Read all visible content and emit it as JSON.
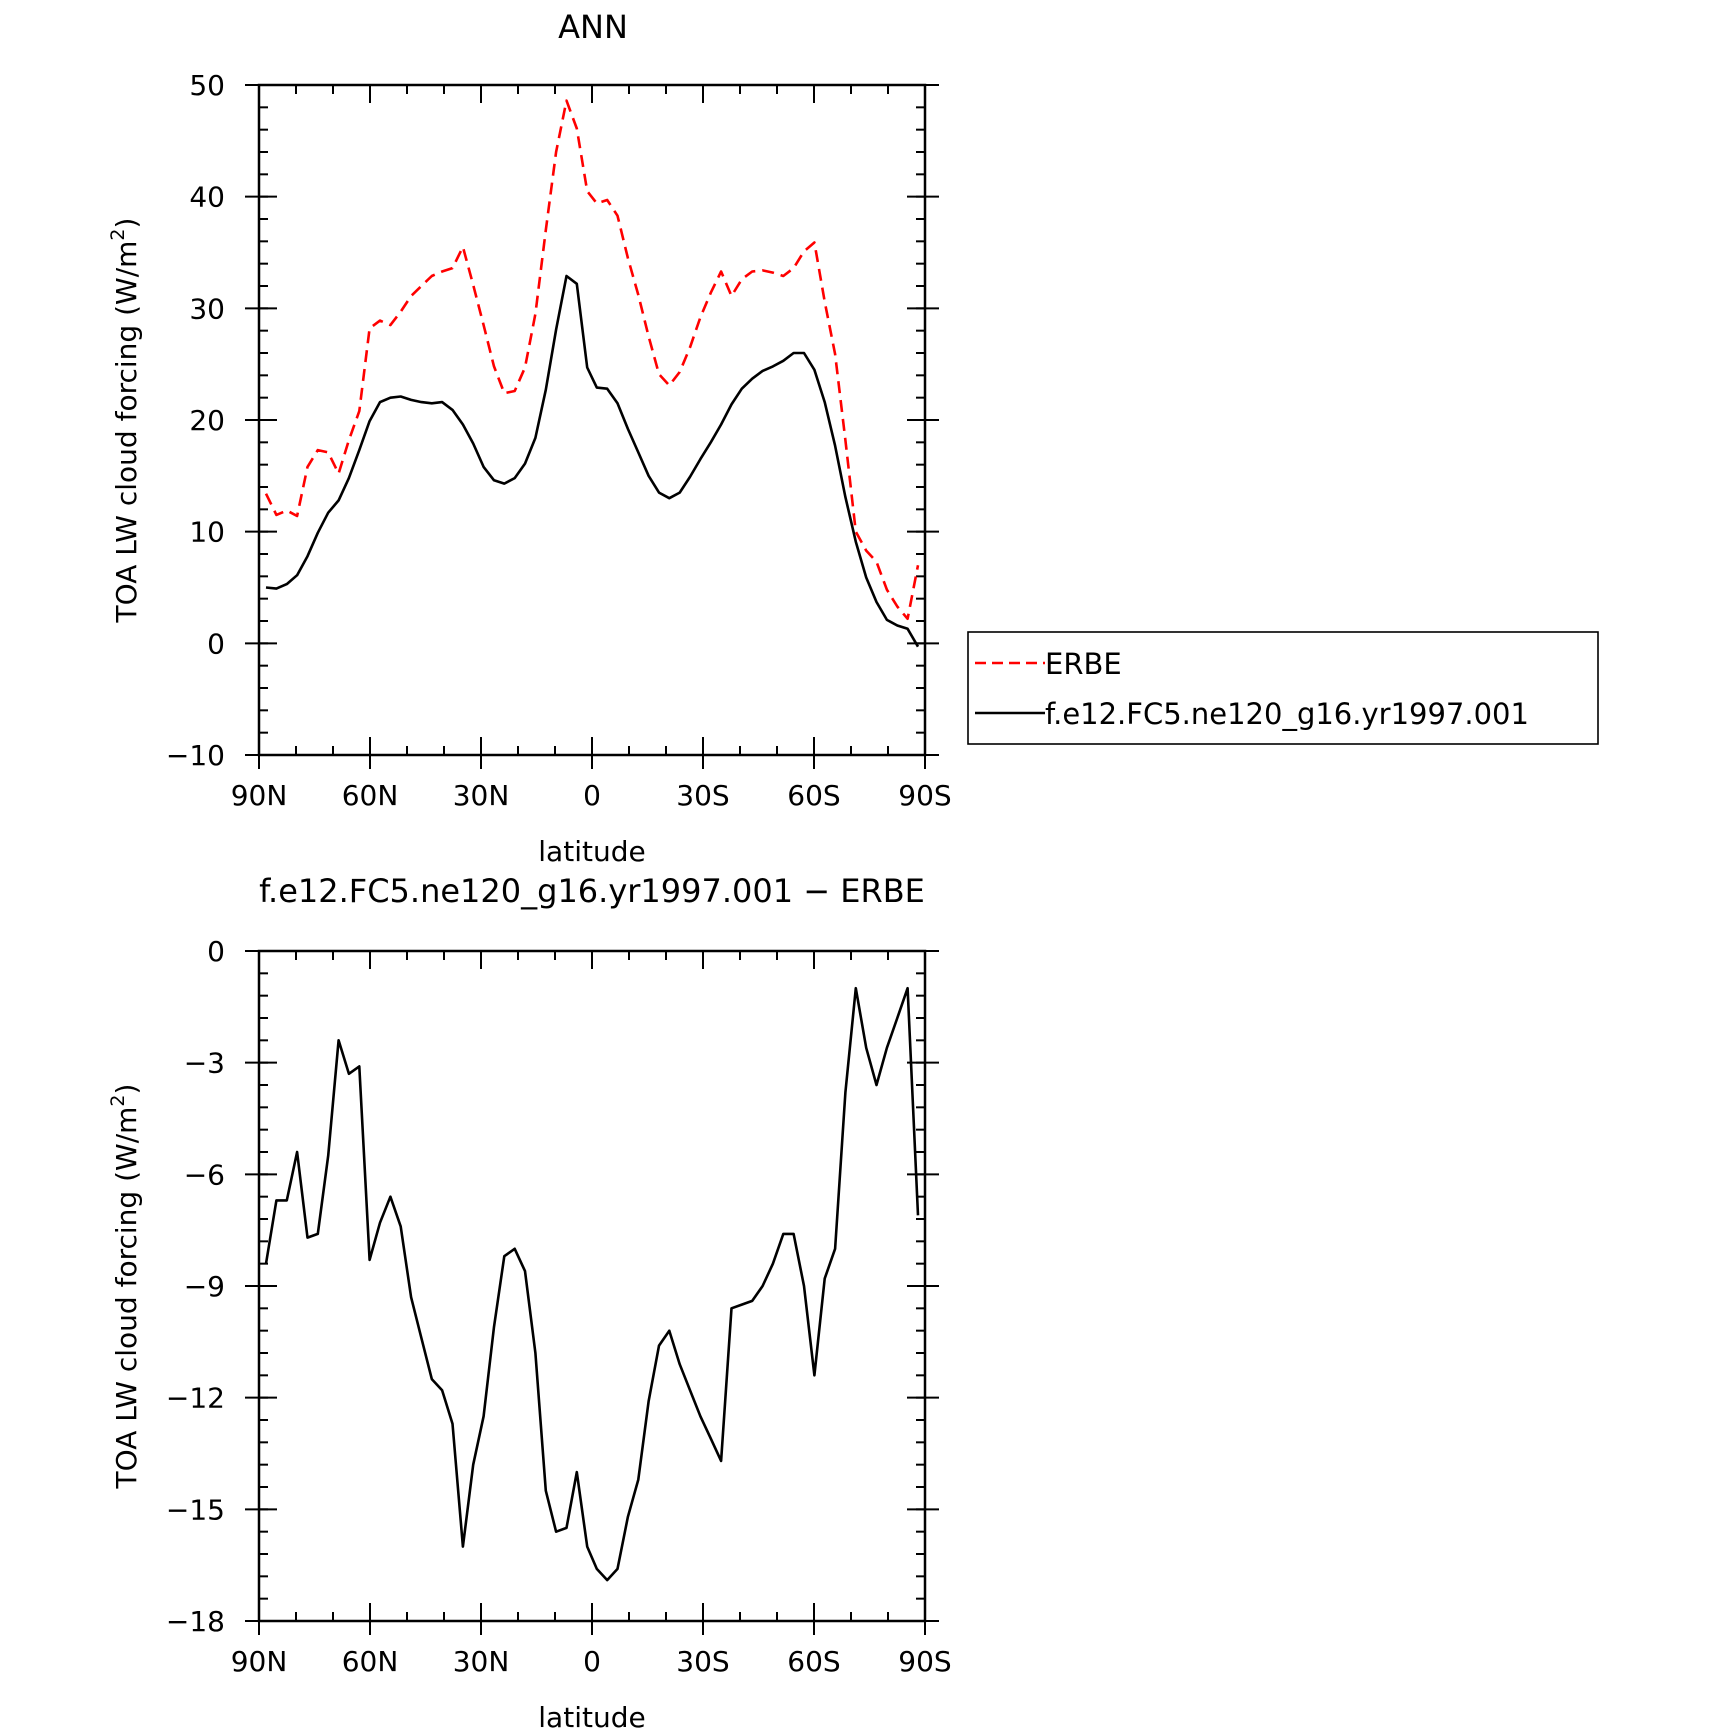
{
  "chart_data": [
    {
      "type": "line",
      "title": "ANN",
      "xlabel": "latitude",
      "ylabel": "TOA LW cloud forcing (W/m",
      "ylabel_sup": "2",
      "ylabel_close": ")",
      "xlim": [
        90,
        -90
      ],
      "ylim": [
        -10,
        50
      ],
      "x_ticks": [
        90,
        60,
        30,
        0,
        -30,
        -60,
        -90
      ],
      "x_tick_labels": [
        "90N",
        "60N",
        "30N",
        "0",
        "30S",
        "60S",
        "90S"
      ],
      "y_ticks": [
        50,
        40,
        30,
        20,
        10,
        0,
        -10
      ],
      "y_tick_labels": [
        "50",
        "40",
        "30",
        "20",
        "10",
        "0",
        "−10"
      ],
      "legend": "right",
      "x": [
        88.1,
        85.3,
        82.5,
        79.7,
        76.9,
        74.1,
        71.3,
        68.5,
        65.7,
        62.9,
        60.1,
        57.3,
        54.5,
        51.7,
        48.9,
        46.1,
        43.3,
        40.5,
        37.7,
        34.9,
        32.1,
        29.3,
        26.5,
        23.7,
        20.9,
        18.1,
        15.3,
        12.5,
        9.7,
        6.9,
        4.1,
        1.3,
        -1.3,
        -4.1,
        -6.9,
        -9.7,
        -12.5,
        -15.3,
        -18.1,
        -20.9,
        -23.7,
        -26.5,
        -29.3,
        -32.1,
        -34.9,
        -37.7,
        -40.5,
        -43.3,
        -46.1,
        -48.9,
        -51.7,
        -54.5,
        -57.3,
        -60.1,
        -62.9,
        -65.7,
        -68.5,
        -71.3,
        -74.1,
        -76.9,
        -79.7,
        -82.5,
        -85.3,
        -88.1
      ],
      "series": [
        {
          "name": "ERBE",
          "color": "#ff0000",
          "dash": "dashed",
          "values": [
            13.4,
            11.5,
            11.9,
            11.4,
            15.8,
            17.3,
            17.1,
            15.2,
            18.2,
            20.8,
            28.2,
            28.9,
            28.5,
            29.7,
            31.1,
            32.0,
            32.9,
            33.3,
            33.6,
            35.5,
            32.1,
            28.5,
            24.8,
            22.4,
            22.6,
            24.7,
            29.5,
            37.0,
            44.0,
            48.6,
            46.1,
            40.5,
            39.4,
            39.7,
            38.3,
            34.5,
            31.2,
            27.5,
            24.1,
            23.1,
            24.3,
            26.5,
            29.2,
            31.4,
            33.3,
            31.1,
            32.6,
            33.3,
            33.4,
            33.2,
            32.9,
            33.6,
            35.1,
            35.9,
            30.6,
            25.9,
            18.2,
            10.0,
            8.3,
            7.3,
            4.8,
            3.3,
            2.2,
            7.0
          ]
        },
        {
          "name": "f.e12.FC5.ne120_g16.yr1997.001",
          "color": "#000000",
          "dash": "solid",
          "values": [
            5.0,
            4.9,
            5.3,
            6.1,
            7.8,
            9.9,
            11.7,
            12.8,
            14.8,
            17.3,
            19.9,
            21.6,
            22.0,
            22.1,
            21.8,
            21.6,
            21.5,
            21.6,
            20.9,
            19.6,
            17.9,
            15.8,
            14.6,
            14.3,
            14.8,
            16.1,
            18.4,
            22.7,
            28.1,
            32.9,
            32.2,
            24.7,
            22.9,
            22.8,
            21.5,
            19.2,
            17.1,
            15.0,
            13.5,
            13.0,
            13.5,
            14.9,
            16.5,
            18.0,
            19.6,
            21.4,
            22.8,
            23.7,
            24.4,
            24.8,
            25.3,
            26.0,
            26.0,
            24.5,
            21.6,
            17.7,
            13.1,
            9.1,
            5.9,
            3.7,
            2.1,
            1.6,
            1.3,
            -0.3
          ]
        }
      ]
    },
    {
      "type": "line",
      "title": "f.e12.FC5.ne120_g16.yr1997.001 − ERBE",
      "xlabel": "latitude",
      "ylabel": "TOA LW cloud forcing (W/m",
      "ylabel_sup": "2",
      "ylabel_close": ")",
      "xlim": [
        90,
        -90
      ],
      "ylim": [
        -18,
        0
      ],
      "x_ticks": [
        90,
        60,
        30,
        0,
        -30,
        -60,
        -90
      ],
      "x_tick_labels": [
        "90N",
        "60N",
        "30N",
        "0",
        "30S",
        "60S",
        "90S"
      ],
      "y_ticks": [
        0,
        -3,
        -6,
        -9,
        -12,
        -15,
        -18
      ],
      "y_tick_labels": [
        "0",
        "−3",
        "−6",
        "−9",
        "−12",
        "−15",
        "−18"
      ],
      "x": [
        88.1,
        85.3,
        82.5,
        79.7,
        76.9,
        74.1,
        71.3,
        68.5,
        65.7,
        62.9,
        60.1,
        57.3,
        54.5,
        51.7,
        48.9,
        46.1,
        43.3,
        40.5,
        37.7,
        34.9,
        32.1,
        29.3,
        26.5,
        23.7,
        20.9,
        18.1,
        15.3,
        12.5,
        9.7,
        6.9,
        4.1,
        1.3,
        -1.3,
        -4.1,
        -6.9,
        -9.7,
        -12.5,
        -15.3,
        -18.1,
        -20.9,
        -23.7,
        -26.5,
        -29.3,
        -32.1,
        -34.9,
        -37.7,
        -40.5,
        -43.3,
        -46.1,
        -48.9,
        -51.7,
        -54.5,
        -57.3,
        -60.1,
        -62.9,
        -65.7,
        -68.5,
        -71.3,
        -74.1,
        -76.9,
        -79.7,
        -82.5,
        -85.3,
        -88.1
      ],
      "series": [
        {
          "color": "#000000",
          "dash": "solid",
          "values": [
            -8.4,
            -6.7,
            -6.7,
            -5.4,
            -7.7,
            -7.6,
            -5.5,
            -2.4,
            -3.3,
            -3.1,
            -8.3,
            -7.3,
            -6.6,
            -7.4,
            -9.3,
            -10.4,
            -11.5,
            -11.8,
            -12.7,
            -16.0,
            -13.8,
            -12.5,
            -10.1,
            -8.2,
            -8.0,
            -8.6,
            -10.8,
            -14.5,
            -15.6,
            -15.5,
            -14.0,
            -16.0,
            -16.6,
            -16.9,
            -16.6,
            -15.2,
            -14.2,
            -12.1,
            -10.6,
            -10.2,
            -11.1,
            -11.8,
            -12.5,
            -13.1,
            -13.7,
            -9.6,
            -9.5,
            -9.4,
            -9.0,
            -8.4,
            -7.6,
            -7.6,
            -9.0,
            -11.4,
            -8.8,
            -8.0,
            -3.8,
            -1.0,
            -2.6,
            -3.6,
            -2.6,
            -1.8,
            -1.0,
            -7.1
          ]
        }
      ]
    }
  ]
}
